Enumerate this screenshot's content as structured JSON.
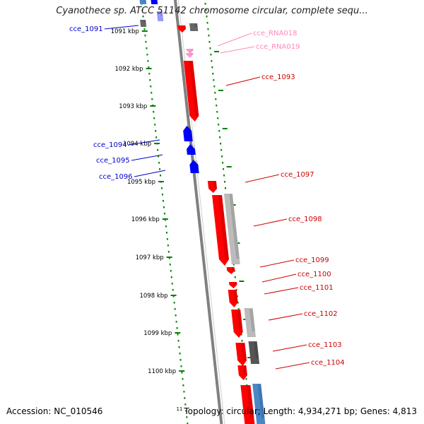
{
  "title": "Cyanothece sp. ATCC 51142 chromosome circular, complete sequ...",
  "accession": "Accession: NC_010546",
  "summary_index": "11",
  "summary": "Topology: circular; Length: 4,934,271 bp; Genes: 4,813",
  "colors": {
    "forward_gene": "#ff0000",
    "reverse_gene": "#0000ff",
    "rna": "#ff99cc",
    "pseudo": "#999999",
    "blue_pale": "#4a86c8",
    "tick": "#008000",
    "backbone": "#808080"
  },
  "kbp_ticks": [
    "1091 kbp",
    "1092 kbp",
    "1093 kbp",
    "1094 kbp",
    "1095 kbp",
    "1096 kbp",
    "1097 kbp",
    "1098 kbp",
    "1099 kbp",
    "1100 kbp"
  ],
  "gene_labels_left": [
    {
      "id": "cce_1091",
      "color": "#0000cc"
    },
    {
      "id": "cce_1094",
      "color": "#0000cc"
    },
    {
      "id": "cce_1095",
      "color": "#0000cc"
    },
    {
      "id": "cce_1096",
      "color": "#0000cc"
    }
  ],
  "gene_labels_right": [
    {
      "id": "cce_RNA018",
      "color": "#ff88bb"
    },
    {
      "id": "cce_RNA019",
      "color": "#ff88bb"
    },
    {
      "id": "cce_1093",
      "color": "#cc0000"
    },
    {
      "id": "cce_1097",
      "color": "#cc0000"
    },
    {
      "id": "cce_1098",
      "color": "#cc0000"
    },
    {
      "id": "cce_1099",
      "color": "#cc0000"
    },
    {
      "id": "cce_1100",
      "color": "#cc0000"
    },
    {
      "id": "cce_1101",
      "color": "#cc0000"
    },
    {
      "id": "cce_1102",
      "color": "#cc0000"
    },
    {
      "id": "cce_1103",
      "color": "#cc0000"
    },
    {
      "id": "cce_1104",
      "color": "#cc0000"
    }
  ]
}
